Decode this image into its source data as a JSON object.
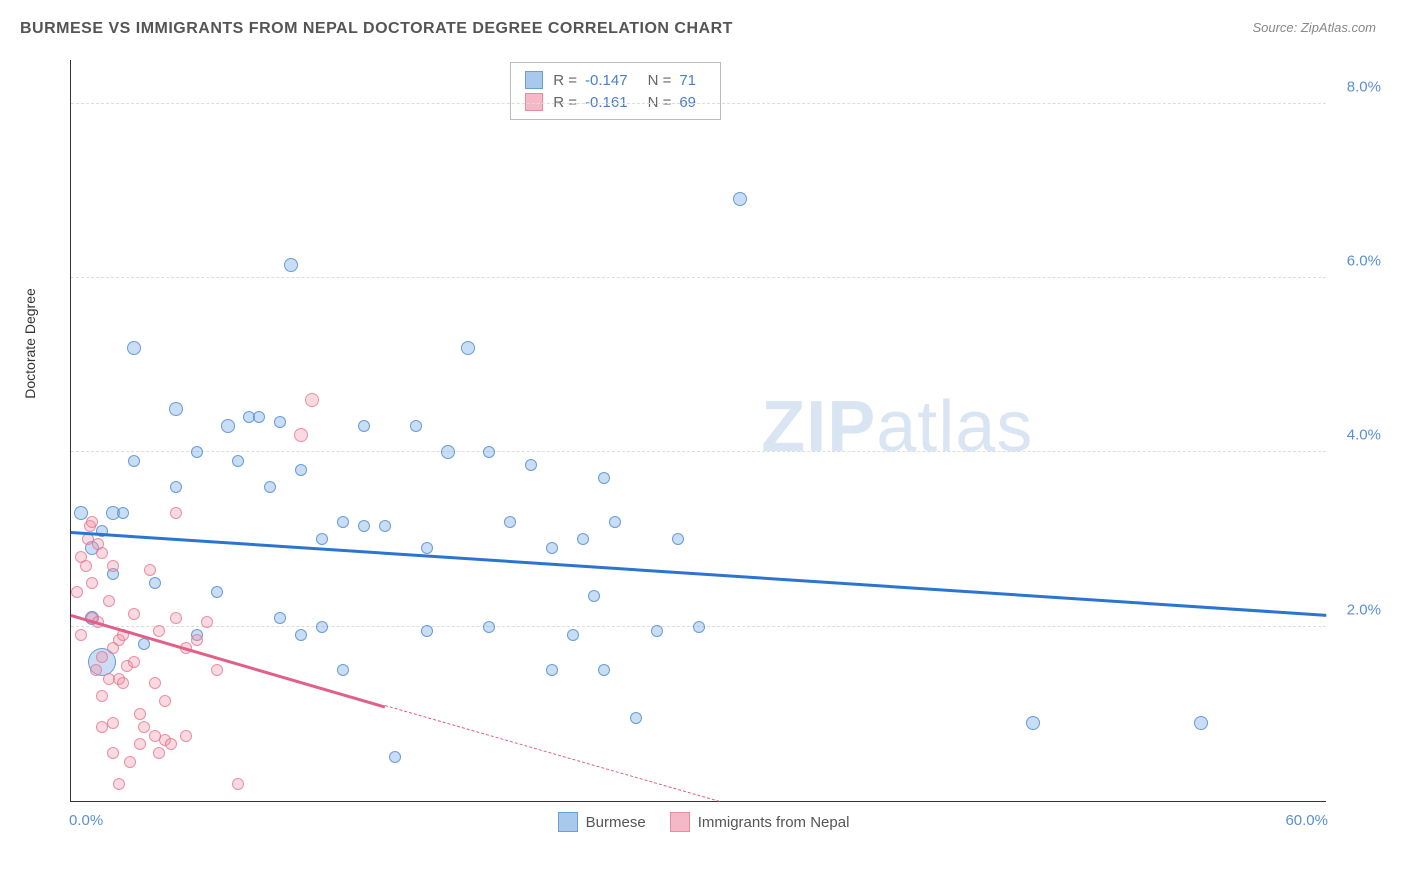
{
  "title": "BURMESE VS IMMIGRANTS FROM NEPAL DOCTORATE DEGREE CORRELATION CHART",
  "source": "Source: ZipAtlas.com",
  "watermark": {
    "bold": "ZIP",
    "light": "atlas"
  },
  "chart": {
    "type": "scatter",
    "y_axis_title": "Doctorate Degree",
    "xlim": [
      0,
      60
    ],
    "ylim": [
      0,
      8.5
    ],
    "x_tick_min": "0.0%",
    "x_tick_max": "60.0%",
    "y_ticks": [
      {
        "v": 2.0,
        "label": "2.0%"
      },
      {
        "v": 4.0,
        "label": "4.0%"
      },
      {
        "v": 6.0,
        "label": "6.0%"
      },
      {
        "v": 8.0,
        "label": "8.0%"
      }
    ],
    "grid_color": "#dddddd",
    "background_color": "#ffffff",
    "series": [
      {
        "name": "Burmese",
        "color_fill": "rgba(120,170,230,0.4)",
        "color_stroke": "#5a8fd6",
        "swatch_fill": "#a8c8ec",
        "swatch_border": "#6b9fd8",
        "R": "-0.147",
        "N": "71",
        "trend": {
          "x1": 0,
          "y1": 3.1,
          "x2": 60,
          "y2": 2.15,
          "color": "#2b74d0",
          "dash_after_x": 60
        },
        "points": [
          [
            0.5,
            3.3,
            14
          ],
          [
            1,
            2.1,
            14
          ],
          [
            1,
            2.9,
            14
          ],
          [
            1.5,
            3.1,
            12
          ],
          [
            1.5,
            1.6,
            28
          ],
          [
            2,
            2.6,
            12
          ],
          [
            2,
            3.3,
            14
          ],
          [
            2.5,
            3.3,
            12
          ],
          [
            3,
            5.2,
            14
          ],
          [
            3,
            3.9,
            12
          ],
          [
            3.5,
            1.8,
            12
          ],
          [
            4,
            2.5,
            12
          ],
          [
            5,
            3.6,
            12
          ],
          [
            5,
            4.5,
            14
          ],
          [
            6,
            4.0,
            12
          ],
          [
            6,
            1.9,
            12
          ],
          [
            7,
            2.4,
            12
          ],
          [
            7.5,
            4.3,
            14
          ],
          [
            8,
            3.9,
            12
          ],
          [
            8.5,
            4.4,
            12
          ],
          [
            9,
            4.4,
            12
          ],
          [
            9.5,
            3.6,
            12
          ],
          [
            10,
            2.1,
            12
          ],
          [
            10,
            4.35,
            12
          ],
          [
            10.5,
            6.15,
            14
          ],
          [
            11,
            1.9,
            12
          ],
          [
            11,
            3.8,
            12
          ],
          [
            12,
            3.0,
            12
          ],
          [
            12,
            2.0,
            12
          ],
          [
            13,
            3.2,
            12
          ],
          [
            13,
            1.5,
            12
          ],
          [
            14,
            4.3,
            12
          ],
          [
            14,
            3.15,
            12
          ],
          [
            15,
            3.15,
            12
          ],
          [
            15.5,
            0.5,
            12
          ],
          [
            16.5,
            4.3,
            12
          ],
          [
            17,
            2.9,
            12
          ],
          [
            17,
            1.95,
            12
          ],
          [
            18,
            4.0,
            14
          ],
          [
            19,
            5.2,
            14
          ],
          [
            20,
            4.0,
            12
          ],
          [
            20,
            2.0,
            12
          ],
          [
            21,
            3.2,
            12
          ],
          [
            22,
            3.85,
            12
          ],
          [
            23,
            2.9,
            12
          ],
          [
            23,
            1.5,
            12
          ],
          [
            24,
            1.9,
            12
          ],
          [
            24.5,
            3.0,
            12
          ],
          [
            25,
            2.35,
            12
          ],
          [
            25.5,
            1.5,
            12
          ],
          [
            25.5,
            3.7,
            12
          ],
          [
            26,
            3.2,
            12
          ],
          [
            27,
            0.95,
            12
          ],
          [
            28,
            1.95,
            12
          ],
          [
            29,
            3.0,
            12
          ],
          [
            30,
            2.0,
            12
          ],
          [
            32,
            6.9,
            14
          ],
          [
            46,
            0.9,
            14
          ],
          [
            54,
            0.9,
            14
          ]
        ]
      },
      {
        "name": "Immigrants from Nepal",
        "color_fill": "rgba(240,150,170,0.35)",
        "color_stroke": "#e57a96",
        "swatch_fill": "#f5b8c6",
        "swatch_border": "#e88ba3",
        "R": "-0.161",
        "N": "69",
        "trend": {
          "x1": 0,
          "y1": 2.15,
          "x2": 15,
          "y2": 1.1,
          "color": "#e06088",
          "dash_after_x": 15,
          "dash_x2": 31,
          "dash_y2": 0
        },
        "points": [
          [
            0.3,
            2.4,
            12
          ],
          [
            0.5,
            2.8,
            12
          ],
          [
            0.5,
            1.9,
            12
          ],
          [
            0.7,
            2.7,
            12
          ],
          [
            0.8,
            3.0,
            12
          ],
          [
            0.9,
            3.15,
            12
          ],
          [
            1,
            2.1,
            12
          ],
          [
            1,
            3.2,
            12
          ],
          [
            1,
            2.5,
            12
          ],
          [
            1.2,
            1.5,
            12
          ],
          [
            1.3,
            2.05,
            12
          ],
          [
            1.3,
            2.95,
            12
          ],
          [
            1.5,
            1.2,
            12
          ],
          [
            1.5,
            2.85,
            12
          ],
          [
            1.5,
            1.65,
            12
          ],
          [
            1.5,
            0.85,
            12
          ],
          [
            1.8,
            1.4,
            12
          ],
          [
            1.8,
            2.3,
            12
          ],
          [
            2,
            0.55,
            12
          ],
          [
            2,
            1.75,
            12
          ],
          [
            2,
            2.7,
            12
          ],
          [
            2,
            0.9,
            12
          ],
          [
            2.3,
            1.85,
            12
          ],
          [
            2.3,
            0.2,
            12
          ],
          [
            2.3,
            1.4,
            12
          ],
          [
            2.5,
            1.9,
            12
          ],
          [
            2.5,
            1.35,
            12
          ],
          [
            2.7,
            1.55,
            12
          ],
          [
            2.8,
            0.45,
            12
          ],
          [
            3,
            2.15,
            12
          ],
          [
            3,
            1.6,
            12
          ],
          [
            3.3,
            1.0,
            12
          ],
          [
            3.3,
            0.65,
            12
          ],
          [
            3.5,
            0.85,
            12
          ],
          [
            3.8,
            2.65,
            12
          ],
          [
            4,
            0.75,
            12
          ],
          [
            4,
            1.35,
            12
          ],
          [
            4.2,
            0.55,
            12
          ],
          [
            4.2,
            1.95,
            12
          ],
          [
            4.5,
            0.7,
            12
          ],
          [
            4.5,
            1.15,
            12
          ],
          [
            4.8,
            0.65,
            12
          ],
          [
            5,
            3.3,
            12
          ],
          [
            5,
            2.1,
            12
          ],
          [
            5.5,
            0.75,
            12
          ],
          [
            5.5,
            1.75,
            12
          ],
          [
            6,
            1.85,
            12
          ],
          [
            6.5,
            2.05,
            12
          ],
          [
            7,
            1.5,
            12
          ],
          [
            8,
            0.2,
            12
          ],
          [
            11,
            4.2,
            14
          ],
          [
            11.5,
            4.6,
            14
          ]
        ]
      }
    ],
    "stats_box": {
      "rows": [
        {
          "swatch_fill": "#a8c8ec",
          "swatch_border": "#6b9fd8",
          "R_label": "R =",
          "R": "-0.147",
          "N_label": "N =",
          "N": "71"
        },
        {
          "swatch_fill": "#f5b8c6",
          "swatch_border": "#e88ba3",
          "R_label": "R =",
          "R": "-0.161",
          "N_label": "N =",
          "N": "69"
        }
      ]
    },
    "bottom_legend": [
      {
        "swatch_fill": "#a8c8ec",
        "swatch_border": "#6b9fd8",
        "label": "Burmese"
      },
      {
        "swatch_fill": "#f5b8c6",
        "swatch_border": "#e88ba3",
        "label": "Immigrants from Nepal"
      }
    ]
  }
}
